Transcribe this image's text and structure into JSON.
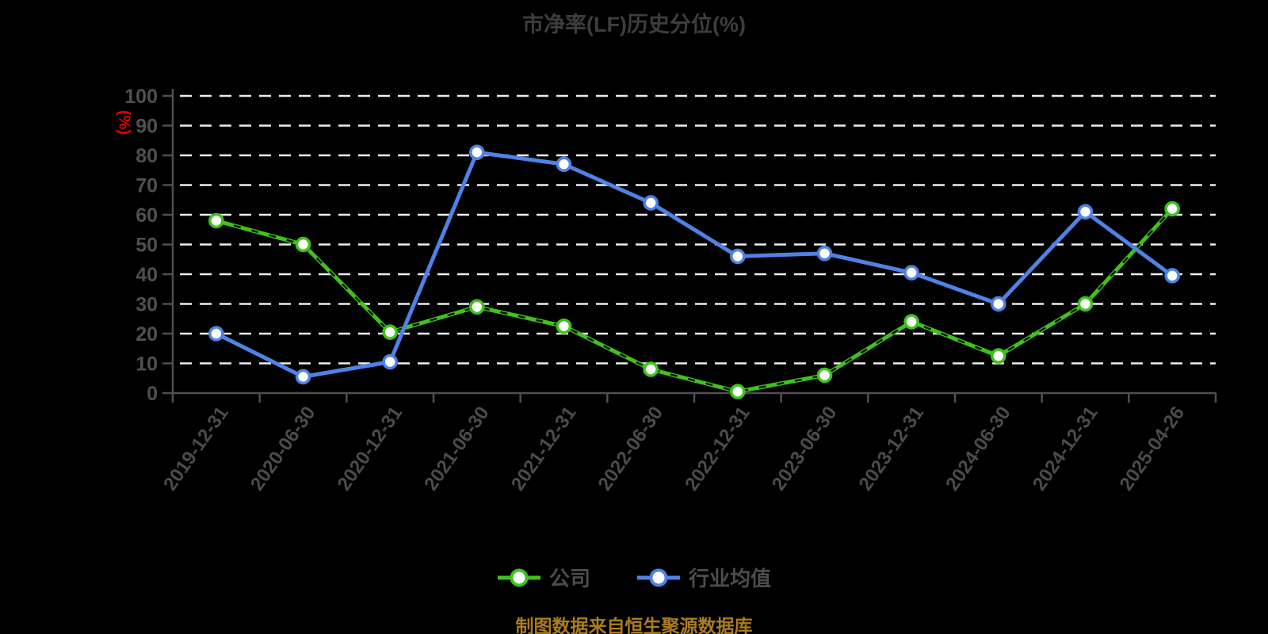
{
  "title": "市净率(LF)历史分位(%)",
  "y_axis_unit": "(%)",
  "footer": "制图数据来自恒生聚源数据库",
  "colors": {
    "background": "#000000",
    "title_text": "#3d3d3d",
    "axis": "#4f4f4f",
    "grid": "#ededed",
    "y_unit_red": "#e60000",
    "footer_gold": "#aa7c1e",
    "legend_text": "#4c4c4c",
    "company_green": "#3fc31a",
    "industry_blue": "#4f82e6",
    "marker_fill": "#ffffff"
  },
  "legend": [
    {
      "label": "公司",
      "color": "#3fc31a"
    },
    {
      "label": "行业均值",
      "color": "#4f82e6"
    }
  ],
  "chart_data": {
    "type": "line",
    "title": "市净率(LF)历史分位(%)",
    "categories": [
      "2019-12-31",
      "2020-06-30",
      "2020-12-31",
      "2021-06-30",
      "2021-12-31",
      "2022-06-30",
      "2022-12-31",
      "2023-06-30",
      "2023-12-31",
      "2024-06-30",
      "2024-12-31",
      "2025-04-26"
    ],
    "series": [
      {
        "name": "公司",
        "color": "#3fc31a",
        "line_style": "solid-with-dark-dash-overlay",
        "values": [
          58,
          50,
          20.5,
          29,
          22.5,
          8,
          0.5,
          6,
          24,
          12.5,
          30,
          62
        ]
      },
      {
        "name": "行业均值",
        "color": "#4f82e6",
        "line_style": "solid",
        "values": [
          20,
          5.5,
          10.5,
          81,
          77,
          64,
          46,
          47,
          40.5,
          30,
          61,
          39.5
        ]
      }
    ],
    "ylim": [
      0,
      100
    ],
    "ytick_step": 10,
    "ylabel": "(%)",
    "xlabel": "",
    "grid": "horizontal-dashed",
    "legend_position": "bottom",
    "x_label_rotation_deg": -55
  }
}
